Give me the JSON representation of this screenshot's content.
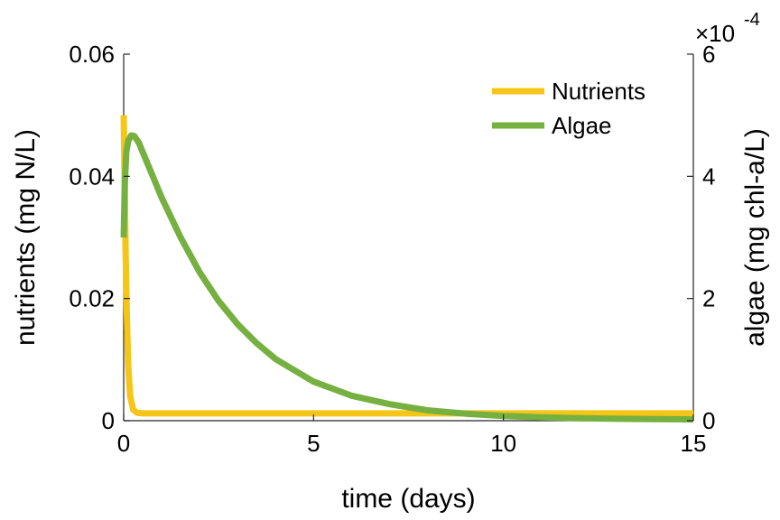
{
  "chart_data": {
    "type": "line",
    "xlabel": "time (days)",
    "ylabel_left": "nutrients (mg N/L)",
    "ylabel_right": "algae (mg chl-a/L)",
    "xlim": [
      0,
      15
    ],
    "ylim_left": [
      0,
      0.06
    ],
    "ylim_right": [
      0,
      0.0006
    ],
    "x_ticks": [
      0,
      5,
      10,
      15
    ],
    "x_tick_labels": [
      "0",
      "5",
      "10",
      "15"
    ],
    "y_left_ticks": [
      0,
      0.02,
      0.04,
      0.06
    ],
    "y_left_tick_labels": [
      "0",
      "0.02",
      "0.04",
      "0.06"
    ],
    "y_right_ticks": [
      0,
      0.0002,
      0.0004,
      0.0006
    ],
    "y_right_tick_labels": [
      "0",
      "2",
      "4",
      "6"
    ],
    "right_exponent_base": "×10",
    "right_exponent_power": "-4",
    "grid": false,
    "legend_position": "top-right",
    "series": [
      {
        "name": "Nutrients",
        "axis": "left",
        "color": "#f5c518",
        "x": [
          0,
          0.02,
          0.05,
          0.08,
          0.12,
          0.17,
          0.25,
          0.35,
          0.5,
          0.75,
          1,
          2,
          3,
          5,
          8,
          10,
          12,
          15
        ],
        "y": [
          0.05,
          0.042,
          0.028,
          0.018,
          0.009,
          0.004,
          0.0018,
          0.0013,
          0.0012,
          0.0012,
          0.0012,
          0.0012,
          0.0012,
          0.0012,
          0.0012,
          0.0012,
          0.0012,
          0.0012
        ]
      },
      {
        "name": "Algae",
        "axis": "right",
        "color": "#76b041",
        "x": [
          0,
          0.03,
          0.07,
          0.12,
          0.2,
          0.28,
          0.4,
          0.6,
          0.8,
          1,
          1.5,
          2,
          2.5,
          3,
          3.5,
          4,
          5,
          6,
          7,
          8,
          9,
          10,
          11,
          12,
          13,
          14,
          15
        ],
        "y": [
          0.0003,
          0.00039,
          0.00044,
          0.000458,
          0.000467,
          0.000466,
          0.000455,
          0.000425,
          0.000395,
          0.000365,
          0.0003,
          0.000243,
          0.000196,
          0.000158,
          0.000127,
          0.000101,
          6.4e-05,
          4.1e-05,
          2.7e-05,
          1.7e-05,
          1.15e-05,
          7.8e-06,
          5.5e-06,
          4e-06,
          3.1e-06,
          2.5e-06,
          2.2e-06
        ]
      }
    ]
  }
}
